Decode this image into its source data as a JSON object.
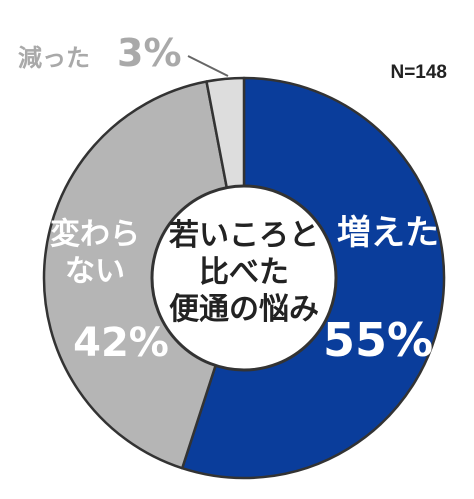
{
  "chart_data": {
    "type": "pie",
    "center_label_lines": [
      "若いころと",
      "比べた",
      "便通の悩み"
    ],
    "sample_size": "N=148",
    "slices": [
      {
        "label_lines": [
          "増えた"
        ],
        "value": 55,
        "value_text": "55%",
        "color": "#0a3d9b"
      },
      {
        "label_lines": [
          "変わら",
          "ない"
        ],
        "value": 42,
        "value_text": "42%",
        "color": "#b5b5b5"
      },
      {
        "label_lines": [
          "減った"
        ],
        "value": 3,
        "value_text": "3%",
        "color": "#dddddd"
      }
    ]
  }
}
